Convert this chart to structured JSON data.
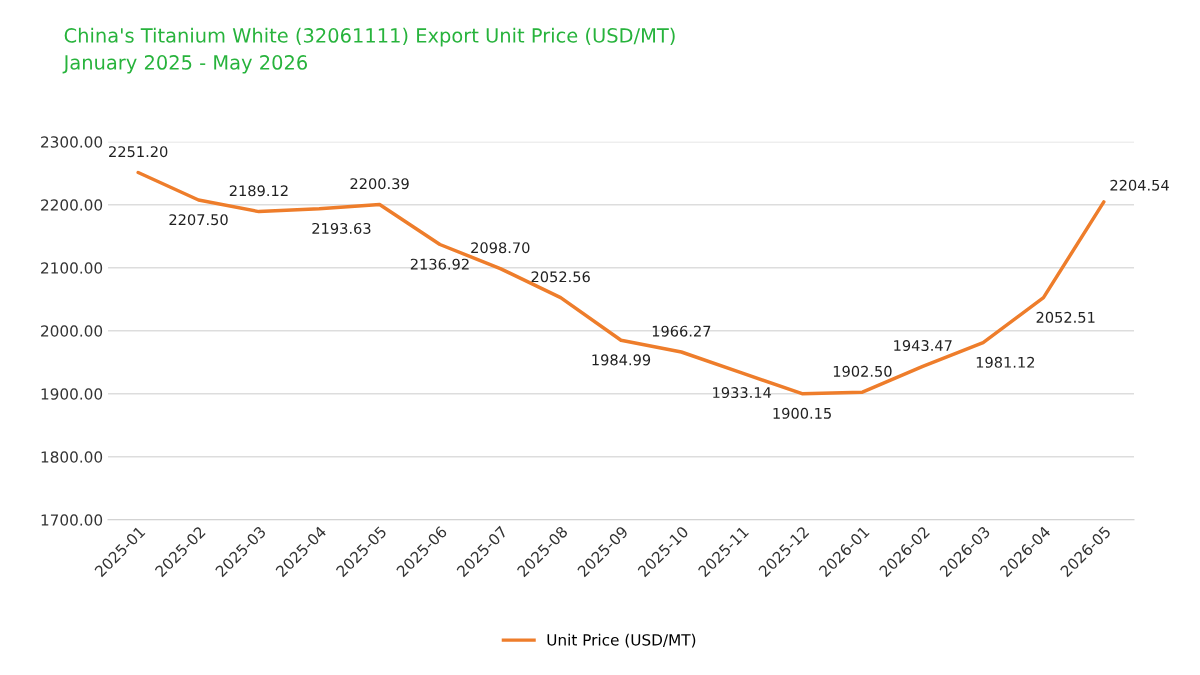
{
  "chart_data": {
    "type": "line",
    "title": "China's Titanium White (32061111) Export Unit Price (USD/MT)",
    "subtitle": "January 2025 - May 2026",
    "categories": [
      "2025-01",
      "2025-02",
      "2025-03",
      "2025-04",
      "2025-05",
      "2025-06",
      "2025-07",
      "2025-08",
      "2025-09",
      "2025-10",
      "2025-11",
      "2025-12",
      "2026-01",
      "2026-02",
      "2026-03",
      "2026-04",
      "2026-05"
    ],
    "series": [
      {
        "name": "Unit Price (USD/MT)",
        "color": "#ee7d2b",
        "values": [
          2251.2,
          2207.5,
          2189.12,
          2193.63,
          2200.39,
          2136.92,
          2098.7,
          2052.56,
          1984.99,
          1966.27,
          1933.14,
          1900.15,
          1902.5,
          1943.47,
          1981.12,
          2052.51,
          2204.54
        ],
        "value_labels": [
          "2251.20",
          "2207.50",
          "2189.12",
          "2193.63",
          "2200.39",
          "2136.92",
          "2098.70",
          "2052.56",
          "1984.99",
          "1966.27",
          "1933.14",
          "1900.15",
          "1902.50",
          "1943.47",
          "1981.12",
          "2052.51",
          "2204.54"
        ]
      }
    ],
    "ylim": [
      1700,
      2300
    ],
    "yticks": [
      {
        "value": 1700,
        "label": "1700.00"
      },
      {
        "value": 1800,
        "label": "1800.00"
      },
      {
        "value": 1900,
        "label": "1900.00"
      },
      {
        "value": 2000,
        "label": "2000.00"
      },
      {
        "value": 2100,
        "label": "2100.00"
      },
      {
        "value": 2200,
        "label": "2200.00"
      },
      {
        "value": 2300,
        "label": "2300.00"
      }
    ],
    "grid": "y",
    "legend": "bottom",
    "marker": "none",
    "line_style": "solid"
  }
}
